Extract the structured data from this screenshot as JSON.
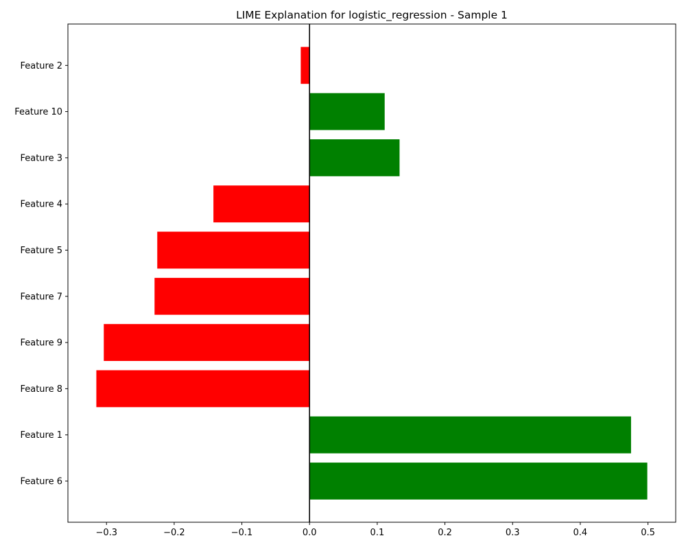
{
  "chart_data": {
    "type": "bar",
    "orientation": "horizontal",
    "title": "LIME Explanation for logistic_regression - Sample 1",
    "xlabel": "",
    "ylabel": "",
    "categories": [
      "Feature 6",
      "Feature 1",
      "Feature 8",
      "Feature 9",
      "Feature 7",
      "Feature 5",
      "Feature 4",
      "Feature 3",
      "Feature 10",
      "Feature 2"
    ],
    "values": [
      0.499,
      0.475,
      -0.315,
      -0.304,
      -0.229,
      -0.225,
      -0.142,
      0.133,
      0.111,
      -0.013
    ],
    "xlim": [
      -0.357,
      0.541
    ],
    "xticks": [
      -0.3,
      -0.2,
      -0.1,
      0.0,
      0.1,
      0.2,
      0.3,
      0.4,
      0.5
    ],
    "xtick_labels": [
      "−0.3",
      "−0.2",
      "−0.1",
      "0.0",
      "0.1",
      "0.2",
      "0.3",
      "0.4",
      "0.5"
    ],
    "grid": false,
    "zero_line": true,
    "colors": {
      "positive": "#008000",
      "negative": "#ff0000",
      "axis": "#000000"
    }
  }
}
